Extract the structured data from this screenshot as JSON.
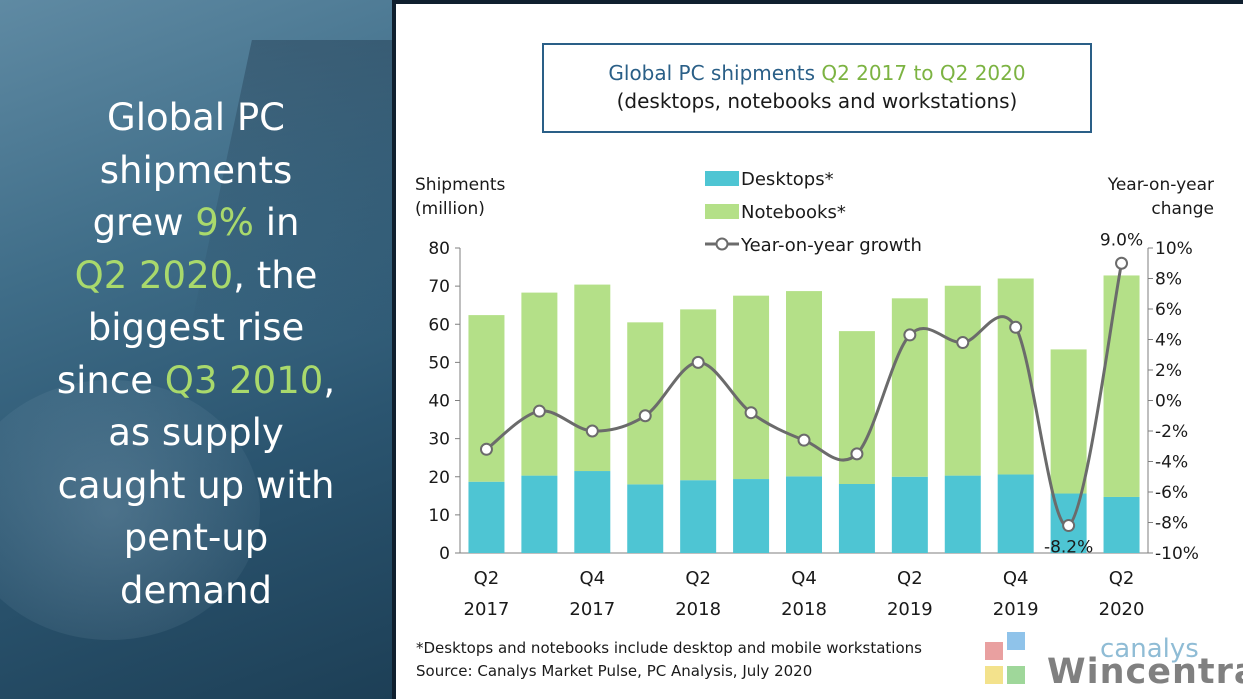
{
  "headline": {
    "line1": "Global PC",
    "line2": "shipments",
    "line3_a": "grew ",
    "line3_b": "9%",
    "line3_c": " in",
    "line4_a": "Q2 2020",
    "line4_b": ", the",
    "line5": "biggest rise",
    "line6_a": "since ",
    "line6_b": "Q3 2010",
    "line6_c": ",",
    "line7": "as supply",
    "line8": "caught up with",
    "line9": "pent-up",
    "line10": "demand"
  },
  "colors": {
    "accent_green": "#a9d96c",
    "desktops": "#4ec5d3",
    "notebooks": "#b4e088",
    "growth_line": "#6b6b6b",
    "title_blue": "#2a5f87",
    "title_green": "#7cb342"
  },
  "chart_title": {
    "part1": "Global PC shipments ",
    "part2": "Q2 2017 to Q2 2020",
    "subtitle": "(desktops, notebooks and workstations)"
  },
  "chart_data": {
    "type": "bar",
    "stacked": true,
    "categories": [
      "Q2 2017",
      "Q3 2017",
      "Q4 2017",
      "Q1 2018",
      "Q2 2018",
      "Q3 2018",
      "Q4 2018",
      "Q1 2019",
      "Q2 2019",
      "Q3 2019",
      "Q4 2019",
      "Q1 2020",
      "Q2 2020"
    ],
    "tick_labels": [
      {
        "index": 0,
        "line1": "Q2",
        "line2": "2017"
      },
      {
        "index": 2,
        "line1": "Q4",
        "line2": "2017"
      },
      {
        "index": 4,
        "line1": "Q2",
        "line2": "2018"
      },
      {
        "index": 6,
        "line1": "Q4",
        "line2": "2018"
      },
      {
        "index": 8,
        "line1": "Q2",
        "line2": "2019"
      },
      {
        "index": 10,
        "line1": "Q4",
        "line2": "2019"
      },
      {
        "index": 12,
        "line1": "Q2",
        "line2": "2020"
      }
    ],
    "series": [
      {
        "name": "Desktops*",
        "values": [
          18.7,
          20.3,
          21.5,
          18.0,
          19.1,
          19.4,
          20.1,
          18.1,
          20.0,
          20.3,
          20.6,
          15.6,
          14.7
        ]
      },
      {
        "name": "Notebooks*",
        "values": [
          43.7,
          48.0,
          48.9,
          42.5,
          44.8,
          48.1,
          48.6,
          40.1,
          46.8,
          49.8,
          51.4,
          37.8,
          58.1
        ]
      }
    ],
    "line_series": {
      "name": "Year-on-year growth",
      "values": [
        -3.2,
        -0.7,
        -2.0,
        -1.0,
        2.5,
        -0.8,
        -2.6,
        -3.5,
        4.3,
        3.8,
        4.8,
        -8.2,
        9.0
      ]
    },
    "data_labels": [
      {
        "index": 11,
        "text": "-8.2%"
      },
      {
        "index": 12,
        "text": "9.0%"
      }
    ],
    "ylabel_left": [
      "Shipments",
      "(million)"
    ],
    "ylabel_right": [
      "Year-on-year",
      "change"
    ],
    "ylim_left": [
      0,
      80
    ],
    "ylim_right": [
      -10,
      10
    ],
    "yticks_left": [
      "0",
      "10",
      "20",
      "30",
      "40",
      "50",
      "60",
      "70",
      "80"
    ],
    "yticks_right": [
      "-10%",
      "-8%",
      "-6%",
      "-4%",
      "-2%",
      "0%",
      "2%",
      "4%",
      "6%",
      "8%",
      "10%"
    ],
    "legend": "top-center",
    "grid": false
  },
  "footnote": {
    "line1": "*Desktops and notebooks include desktop and mobile workstations",
    "line2": "Source: Canalys Market Pulse, PC Analysis, July 2020"
  },
  "watermark": {
    "brand": "canalys",
    "text": "Wincentral"
  }
}
